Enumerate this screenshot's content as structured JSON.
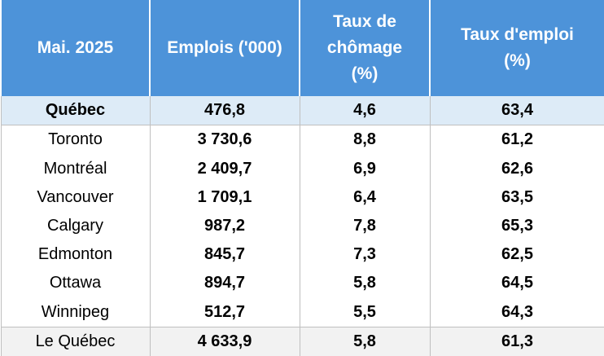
{
  "table": {
    "header": [
      "Mai. 2025",
      "Emplois ('000)",
      [
        "Taux de",
        "chômage",
        "(%)"
      ],
      [
        "Taux d'emploi",
        "(%)"
      ]
    ],
    "rows": [
      [
        "Québec",
        "476,8",
        "4,6",
        "63,4"
      ],
      [
        "Toronto",
        "3 730,6",
        "8,8",
        "61,2"
      ],
      [
        "Montréal",
        "2 409,7",
        "6,9",
        "62,6"
      ],
      [
        "Vancouver",
        "1 709,1",
        "6,4",
        "63,5"
      ],
      [
        "Calgary",
        "987,2",
        "7,8",
        "65,3"
      ],
      [
        "Edmonton",
        "845,7",
        "7,3",
        "62,5"
      ],
      [
        "Ottawa",
        "894,7",
        "5,8",
        "64,5"
      ],
      [
        "Winnipeg",
        "512,7",
        "5,5",
        "64,3"
      ],
      [
        "Le Québec",
        "4 633,9",
        "5,8",
        "61,3"
      ]
    ]
  }
}
